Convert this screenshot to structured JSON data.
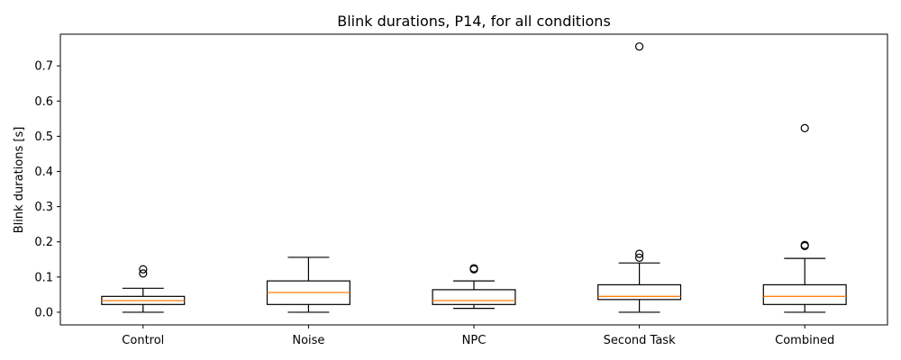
{
  "chart_data": {
    "type": "box",
    "title": "Blink durations, P14, for all conditions",
    "xlabel": "",
    "ylabel": "Blink durations [s]",
    "ylim": [
      -0.036,
      0.79
    ],
    "y_ticks": [
      0.0,
      0.1,
      0.2,
      0.3,
      0.4,
      0.5,
      0.6,
      0.7
    ],
    "y_tick_labels": [
      "0.0",
      "0.1",
      "0.2",
      "0.3",
      "0.4",
      "0.5",
      "0.6",
      "0.7"
    ],
    "grid": false,
    "median_color": "#ff7f0e",
    "box_color": "#000000",
    "categories": [
      "Control",
      "Noise",
      "NPC",
      "Second Task",
      "Combined"
    ],
    "boxes": [
      {
        "category": "Control",
        "whisker_low": 0.0,
        "q1": 0.022,
        "median": 0.033,
        "q3": 0.045,
        "whisker_high": 0.068,
        "outliers": [
          0.11,
          0.122
        ]
      },
      {
        "category": "Noise",
        "whisker_low": 0.0,
        "q1": 0.022,
        "median": 0.056,
        "q3": 0.089,
        "whisker_high": 0.156,
        "outliers": []
      },
      {
        "category": "NPC",
        "whisker_low": 0.011,
        "q1": 0.022,
        "median": 0.033,
        "q3": 0.064,
        "whisker_high": 0.089,
        "outliers": [
          0.122,
          0.125
        ]
      },
      {
        "category": "Second Task",
        "whisker_low": 0.0,
        "q1": 0.036,
        "median": 0.045,
        "q3": 0.078,
        "whisker_high": 0.14,
        "outliers": [
          0.155,
          0.166,
          0.755
        ]
      },
      {
        "category": "Combined",
        "whisker_low": 0.0,
        "q1": 0.022,
        "median": 0.045,
        "q3": 0.078,
        "whisker_high": 0.153,
        "outliers": [
          0.188,
          0.191,
          0.523
        ]
      }
    ]
  }
}
